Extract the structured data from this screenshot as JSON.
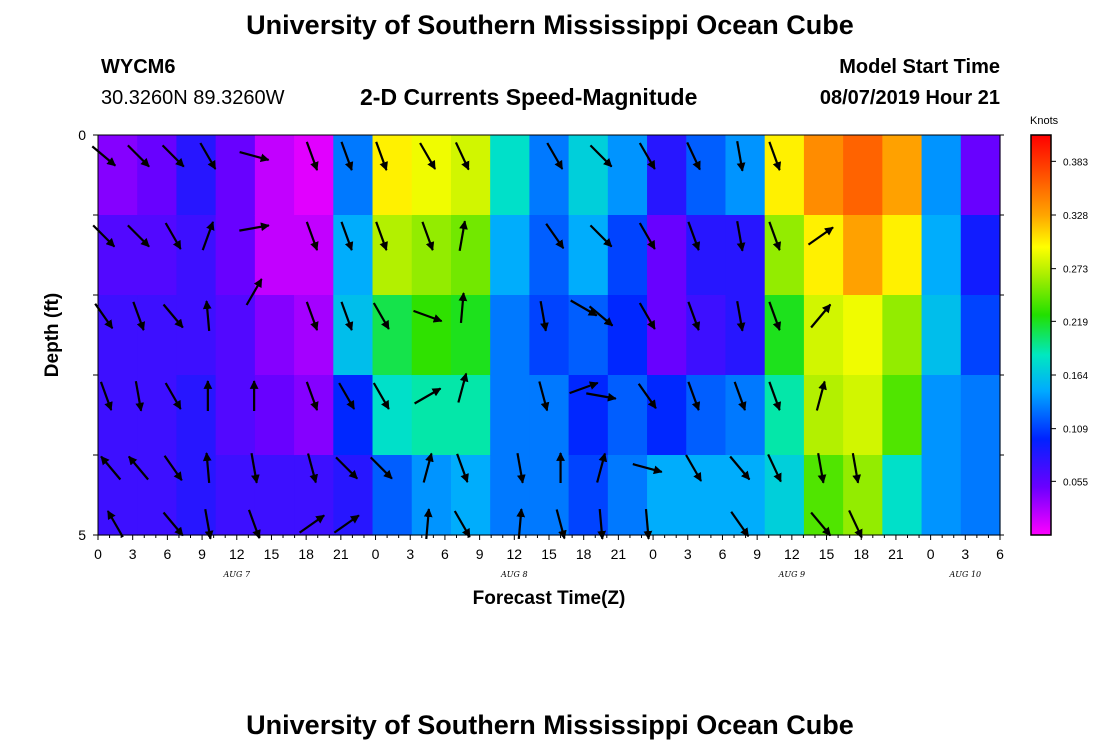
{
  "header": {
    "title": "University of Southern Mississippi Ocean Cube",
    "station": "WYCM6",
    "location": "30.3260N 89.3260W",
    "plot_title": "2-D Currents Speed-Magnitude",
    "model_start_label": "Model Start Time",
    "model_start_value": "08/07/2019 Hour 21"
  },
  "footer": {
    "title": "University of Southern Mississippi Ocean Cube"
  },
  "chart_data": {
    "type": "heatmap",
    "xlabel": "Forecast Time(Z)",
    "ylabel": "Depth (ft)",
    "x_ticks": [
      "0",
      "3",
      "6",
      "9",
      "12",
      "15",
      "18",
      "21",
      "0",
      "3",
      "6",
      "9",
      "12",
      "15",
      "18",
      "21",
      "0",
      "3",
      "6",
      "9",
      "12",
      "15",
      "18",
      "21",
      "0",
      "3",
      "6"
    ],
    "date_labels": [
      {
        "label": "AUG 7",
        "tick_index": 4
      },
      {
        "label": "AUG 8",
        "tick_index": 12
      },
      {
        "label": "AUG 9",
        "tick_index": 20
      },
      {
        "label": "AUG 10",
        "tick_index": 25
      }
    ],
    "y_ticks": [
      "0",
      "5"
    ],
    "ylim": [
      0,
      5
    ],
    "colorbar": {
      "unit": "Knots",
      "ticks": [
        "0.383",
        "0.328",
        "0.273",
        "0.219",
        "0.164",
        "0.109",
        "0.055"
      ],
      "range": [
        0.0,
        0.41
      ]
    },
    "depth_layers": 5,
    "speed_knots_by_time_segment": [
      [
        0.04,
        0.06,
        0.07,
        0.07,
        0.07
      ],
      [
        0.05,
        0.06,
        0.07,
        0.07,
        0.07
      ],
      [
        0.08,
        0.07,
        0.07,
        0.08,
        0.08
      ],
      [
        0.05,
        0.05,
        0.06,
        0.06,
        0.07
      ],
      [
        0.02,
        0.02,
        0.04,
        0.05,
        0.07
      ],
      [
        0.01,
        0.02,
        0.03,
        0.04,
        0.07
      ],
      [
        0.13,
        0.15,
        0.16,
        0.1,
        0.08
      ],
      [
        0.3,
        0.27,
        0.21,
        0.18,
        0.12
      ],
      [
        0.29,
        0.26,
        0.23,
        0.19,
        0.14
      ],
      [
        0.28,
        0.25,
        0.22,
        0.19,
        0.15
      ],
      [
        0.18,
        0.15,
        0.13,
        0.13,
        0.13
      ],
      [
        0.13,
        0.12,
        0.11,
        0.13,
        0.13
      ],
      [
        0.17,
        0.15,
        0.12,
        0.1,
        0.11
      ],
      [
        0.14,
        0.11,
        0.1,
        0.12,
        0.13
      ],
      [
        0.08,
        0.05,
        0.05,
        0.1,
        0.15
      ],
      [
        0.12,
        0.08,
        0.07,
        0.12,
        0.15
      ],
      [
        0.14,
        0.08,
        0.08,
        0.13,
        0.15
      ],
      [
        0.3,
        0.26,
        0.22,
        0.19,
        0.17
      ],
      [
        0.34,
        0.3,
        0.28,
        0.27,
        0.24
      ],
      [
        0.36,
        0.33,
        0.29,
        0.28,
        0.26
      ],
      [
        0.33,
        0.3,
        0.26,
        0.24,
        0.18
      ],
      [
        0.14,
        0.15,
        0.16,
        0.14,
        0.14
      ],
      [
        0.05,
        0.09,
        0.11,
        0.13,
        0.13
      ]
    ],
    "arrows": [
      {
        "t": 0.5,
        "d": 0.1,
        "angle": 40
      },
      {
        "t": 0.5,
        "d": 1.1,
        "angle": 45
      },
      {
        "t": 0.5,
        "d": 2.1,
        "angle": 55
      },
      {
        "t": 0.7,
        "d": 3.1,
        "angle": 70
      },
      {
        "t": 1.1,
        "d": 4.0,
        "angle": 230
      },
      {
        "t": 1.5,
        "d": 4.7,
        "angle": 240
      },
      {
        "t": 3.5,
        "d": 0.1,
        "angle": 45
      },
      {
        "t": 3.5,
        "d": 1.1,
        "angle": 45
      },
      {
        "t": 3.5,
        "d": 2.1,
        "angle": 70
      },
      {
        "t": 3.5,
        "d": 3.1,
        "angle": 80
      },
      {
        "t": 3.5,
        "d": 4.0,
        "angle": 230
      },
      {
        "t": 6.5,
        "d": 0.1,
        "angle": 45
      },
      {
        "t": 6.5,
        "d": 1.1,
        "angle": 60
      },
      {
        "t": 6.5,
        "d": 2.1,
        "angle": 50
      },
      {
        "t": 6.5,
        "d": 3.1,
        "angle": 60
      },
      {
        "t": 6.5,
        "d": 4.0,
        "angle": 55
      },
      {
        "t": 6.5,
        "d": 4.7,
        "angle": 50
      },
      {
        "t": 9.5,
        "d": 0.1,
        "angle": 60
      },
      {
        "t": 9.5,
        "d": 1.1,
        "angle": 290
      },
      {
        "t": 9.5,
        "d": 2.1,
        "angle": 265
      },
      {
        "t": 9.5,
        "d": 3.1,
        "angle": 270
      },
      {
        "t": 9.5,
        "d": 4.0,
        "angle": 265
      },
      {
        "t": 9.5,
        "d": 4.7,
        "angle": 80
      },
      {
        "t": 13.5,
        "d": 0.1,
        "angle": 15
      },
      {
        "t": 13.5,
        "d": 1.0,
        "angle": 350
      },
      {
        "t": 13.5,
        "d": 1.8,
        "angle": 300
      },
      {
        "t": 13.5,
        "d": 3.1,
        "angle": 270
      },
      {
        "t": 13.5,
        "d": 4.0,
        "angle": 80
      },
      {
        "t": 13.5,
        "d": 4.7,
        "angle": 70
      },
      {
        "t": 18.5,
        "d": 0.1,
        "angle": 70
      },
      {
        "t": 18.5,
        "d": 1.1,
        "angle": 70
      },
      {
        "t": 18.5,
        "d": 2.1,
        "angle": 70
      },
      {
        "t": 18.5,
        "d": 3.1,
        "angle": 70
      },
      {
        "t": 18.5,
        "d": 4.0,
        "angle": 75
      },
      {
        "t": 18.5,
        "d": 4.7,
        "angle": 325
      },
      {
        "t": 21.5,
        "d": 0.1,
        "angle": 70
      },
      {
        "t": 21.5,
        "d": 1.1,
        "angle": 70
      },
      {
        "t": 21.5,
        "d": 2.1,
        "angle": 70
      },
      {
        "t": 21.5,
        "d": 3.1,
        "angle": 60
      },
      {
        "t": 21.5,
        "d": 4.0,
        "angle": 45
      },
      {
        "t": 21.5,
        "d": 4.7,
        "angle": 325
      },
      {
        "t": 24.5,
        "d": 0.1,
        "angle": 70
      },
      {
        "t": 24.5,
        "d": 1.1,
        "angle": 70
      },
      {
        "t": 24.5,
        "d": 2.1,
        "angle": 60
      },
      {
        "t": 24.5,
        "d": 3.1,
        "angle": 60
      },
      {
        "t": 24.5,
        "d": 4.0,
        "angle": 45
      },
      {
        "t": 28.5,
        "d": 0.1,
        "angle": 60
      },
      {
        "t": 28.5,
        "d": 1.1,
        "angle": 70
      },
      {
        "t": 28.5,
        "d": 2.1,
        "angle": 20
      },
      {
        "t": 28.5,
        "d": 3.1,
        "angle": 330
      },
      {
        "t": 28.5,
        "d": 4.0,
        "angle": 285
      },
      {
        "t": 28.5,
        "d": 4.7,
        "angle": 275
      },
      {
        "t": 31.5,
        "d": 0.1,
        "angle": 65
      },
      {
        "t": 31.5,
        "d": 1.1,
        "angle": 280
      },
      {
        "t": 31.5,
        "d": 2.0,
        "angle": 275
      },
      {
        "t": 31.5,
        "d": 3.0,
        "angle": 285
      },
      {
        "t": 31.5,
        "d": 4.0,
        "angle": 70
      },
      {
        "t": 31.5,
        "d": 4.7,
        "angle": 60
      },
      {
        "t": 36.5,
        "d": 4.0,
        "angle": 80
      },
      {
        "t": 36.5,
        "d": 4.7,
        "angle": 275
      },
      {
        "t": 38.5,
        "d": 2.1,
        "angle": 80
      },
      {
        "t": 38.5,
        "d": 3.1,
        "angle": 75
      },
      {
        "t": 39.5,
        "d": 0.1,
        "angle": 60
      },
      {
        "t": 39.5,
        "d": 1.1,
        "angle": 55
      },
      {
        "t": 40.0,
        "d": 4.0,
        "angle": 270
      },
      {
        "t": 40.0,
        "d": 4.7,
        "angle": 75
      },
      {
        "t": 42.0,
        "d": 2.0,
        "angle": 30
      },
      {
        "t": 42.0,
        "d": 3.0,
        "angle": 340
      },
      {
        "t": 43.5,
        "d": 0.1,
        "angle": 45
      },
      {
        "t": 43.5,
        "d": 1.1,
        "angle": 45
      },
      {
        "t": 43.5,
        "d": 2.1,
        "angle": 40
      },
      {
        "t": 43.5,
        "d": 3.1,
        "angle": 10
      },
      {
        "t": 43.5,
        "d": 4.0,
        "angle": 285
      },
      {
        "t": 43.5,
        "d": 4.7,
        "angle": 85
      },
      {
        "t": 47.5,
        "d": 0.1,
        "angle": 60
      },
      {
        "t": 47.5,
        "d": 1.1,
        "angle": 60
      },
      {
        "t": 47.5,
        "d": 2.1,
        "angle": 60
      },
      {
        "t": 47.5,
        "d": 3.1,
        "angle": 55
      },
      {
        "t": 47.5,
        "d": 4.0,
        "angle": 15
      },
      {
        "t": 47.5,
        "d": 4.7,
        "angle": 85
      },
      {
        "t": 51.5,
        "d": 0.1,
        "angle": 65
      },
      {
        "t": 51.5,
        "d": 1.1,
        "angle": 70
      },
      {
        "t": 51.5,
        "d": 2.1,
        "angle": 70
      },
      {
        "t": 51.5,
        "d": 3.1,
        "angle": 70
      },
      {
        "t": 51.5,
        "d": 4.0,
        "angle": 60
      },
      {
        "t": 55.5,
        "d": 0.1,
        "angle": 80
      },
      {
        "t": 55.5,
        "d": 1.1,
        "angle": 80
      },
      {
        "t": 55.5,
        "d": 2.1,
        "angle": 80
      },
      {
        "t": 55.5,
        "d": 3.1,
        "angle": 70
      },
      {
        "t": 55.5,
        "d": 4.0,
        "angle": 50
      },
      {
        "t": 55.5,
        "d": 4.7,
        "angle": 55
      },
      {
        "t": 58.5,
        "d": 0.1,
        "angle": 70
      },
      {
        "t": 58.5,
        "d": 1.1,
        "angle": 70
      },
      {
        "t": 58.5,
        "d": 2.1,
        "angle": 70
      },
      {
        "t": 58.5,
        "d": 3.1,
        "angle": 70
      },
      {
        "t": 58.5,
        "d": 4.0,
        "angle": 65
      },
      {
        "t": 62.5,
        "d": 1.1,
        "angle": 325
      },
      {
        "t": 62.5,
        "d": 2.1,
        "angle": 310
      },
      {
        "t": 62.5,
        "d": 3.1,
        "angle": 285
      },
      {
        "t": 62.5,
        "d": 4.0,
        "angle": 80
      },
      {
        "t": 62.5,
        "d": 4.7,
        "angle": 50
      },
      {
        "t": 65.5,
        "d": 4.0,
        "angle": 80
      },
      {
        "t": 65.5,
        "d": 4.7,
        "angle": 65
      }
    ]
  }
}
